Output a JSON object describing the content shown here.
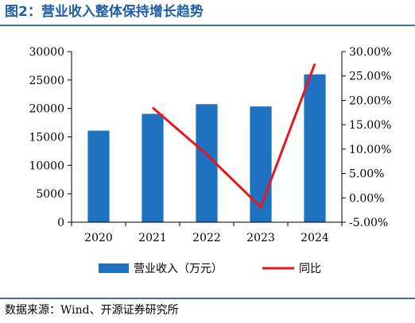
{
  "figure": {
    "title": "图2：营业收入整体保持增长趋势",
    "source": "数据来源：Wind、开源证券研究所"
  },
  "chart_data": {
    "type": "bar",
    "categories": [
      "2020",
      "2021",
      "2022",
      "2023",
      "2024"
    ],
    "series": [
      {
        "name": "营业收入（万元）",
        "type": "bar",
        "axis": "left",
        "color": "#1f72bf",
        "values": [
          16100,
          19050,
          20750,
          20350,
          26000
        ]
      },
      {
        "name": "同比",
        "type": "line",
        "axis": "right",
        "color": "#e8171d",
        "values": [
          null,
          18.5,
          8.9,
          -1.9,
          27.5
        ]
      }
    ],
    "y_left": {
      "min": 0,
      "max": 30000,
      "ticks": [
        "0",
        "5000",
        "10000",
        "15000",
        "20000",
        "25000",
        "30000"
      ]
    },
    "y_right": {
      "min": -5,
      "max": 30,
      "unit": "%",
      "ticks": [
        "-5.00%",
        "0.00%",
        "5.00%",
        "10.00%",
        "15.00%",
        "20.00%",
        "25.00%",
        "30.00%"
      ]
    },
    "grid": false,
    "legend_position": "bottom"
  }
}
